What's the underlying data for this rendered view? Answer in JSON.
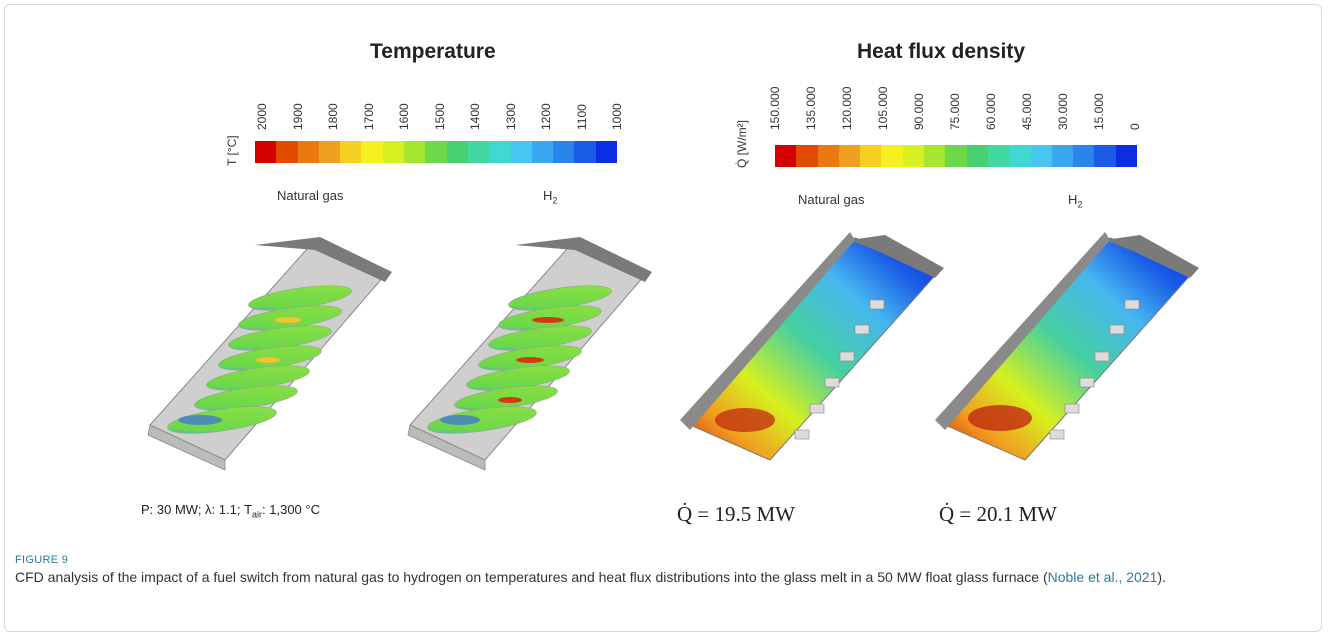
{
  "temperature_panel": {
    "title": "Temperature",
    "axis_label": "T [°C]",
    "ticks": [
      "2000",
      "1900",
      "1800",
      "1700",
      "1600",
      "1500",
      "1400",
      "1300",
      "1200",
      "1100",
      "1000"
    ],
    "left_label": "Natural gas",
    "right_label_base": "H",
    "right_label_sub": "2"
  },
  "heat_flux_panel": {
    "title": "Heat flux density",
    "axis_label": "Q̇ [W/m²]",
    "ticks": [
      "150.000",
      "135.000",
      "120.000",
      "105.000",
      "90.000",
      "75.000",
      "60.000",
      "45.000",
      "30.000",
      "15.000",
      "0"
    ],
    "left_label": "Natural gas",
    "right_label_base": "H",
    "right_label_sub": "2"
  },
  "colorbar_colors": [
    "#d40000",
    "#e24a00",
    "#ea7a10",
    "#f0a020",
    "#f6d020",
    "#f6f020",
    "#d6f020",
    "#a6e630",
    "#6cd84a",
    "#46d070",
    "#40d8a0",
    "#40d8d0",
    "#46c6f0",
    "#3aa8f0",
    "#2a84ec",
    "#1a5ce6",
    "#0a2ee0"
  ],
  "parameters": {
    "p_label": "P: 30 MW; λ: 1.1; T",
    "t_sub": "air",
    "t_value": ": 1,300 °C"
  },
  "totals": {
    "natural_gas": "Q̇ = 19.5 MW",
    "hydrogen": "Q̇ = 20.1 MW"
  },
  "figure_label": "FIGURE 9",
  "caption": {
    "text": "CFD analysis of the impact of a fuel switch from natural gas to hydrogen on temperatures and heat flux distributions into the glass melt in a 50 MW float glass furnace (",
    "citation": "Noble et al., 2021",
    "end": ")."
  }
}
